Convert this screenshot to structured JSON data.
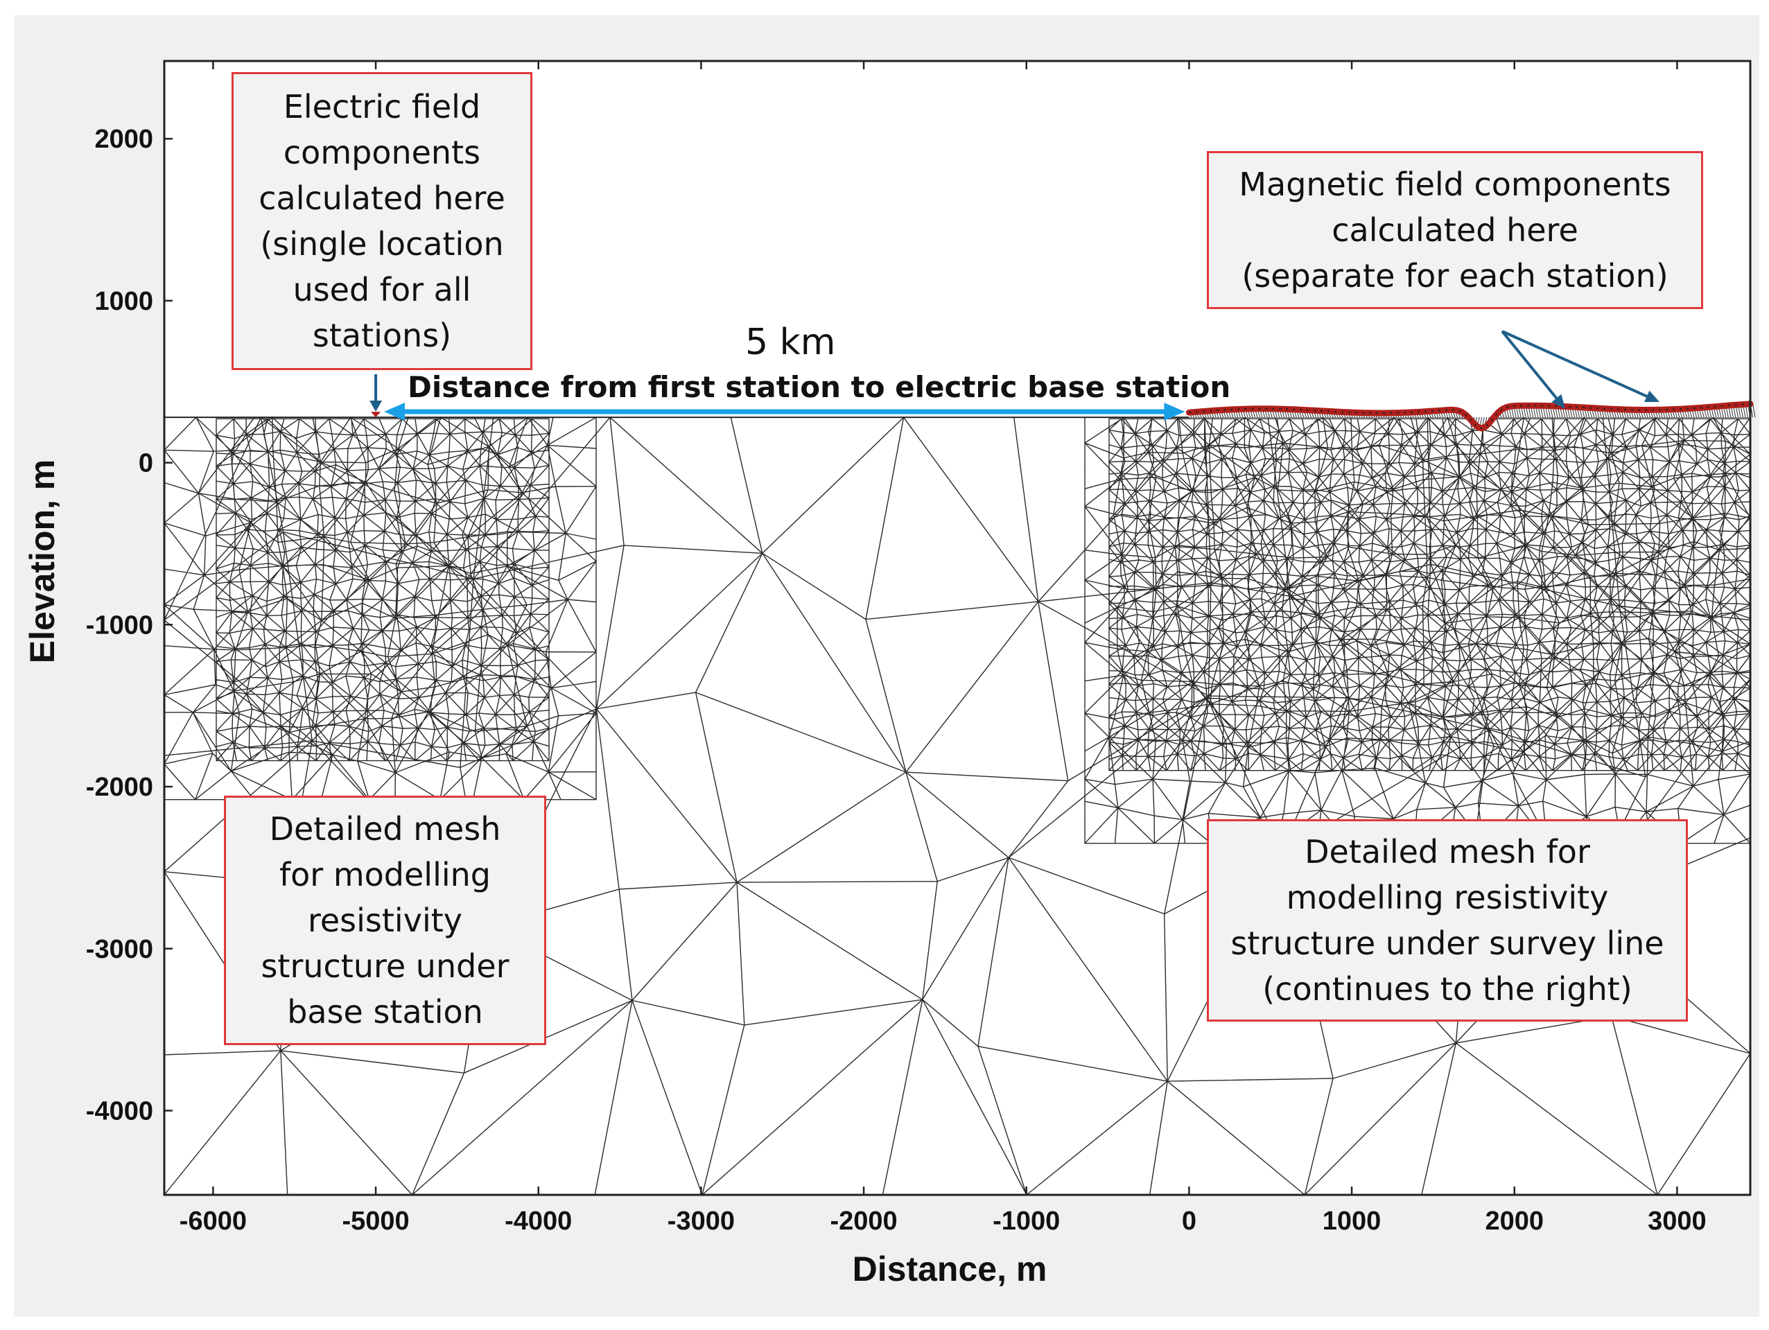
{
  "figure": {
    "x_axis_title": "Distance, m",
    "y_axis_title": "Elevation, m",
    "x_ticks": [
      -6000,
      -5000,
      -4000,
      -3000,
      -2000,
      -1000,
      0,
      1000,
      2000,
      3000
    ],
    "x_tick_labels": [
      "-6000",
      "-5000",
      "-4000",
      "-3000",
      "-2000",
      "-1000",
      "0",
      "1000",
      "2000",
      "3000"
    ],
    "y_ticks": [
      2000,
      1000,
      0,
      -1000,
      -2000,
      -3000,
      -4000
    ],
    "y_tick_labels": [
      "2000",
      "1000",
      "0",
      "-1000",
      "-2000",
      "-3000",
      "-4000"
    ],
    "x_range": [
      -6300,
      3450
    ],
    "y_range": [
      -4520,
      2480
    ],
    "colors": {
      "mesh_line": "#2b2b2b",
      "callout_border": "#e0393b",
      "callout_fill": "#f2f2f2",
      "distance_arrow": "#1aa0e6",
      "pointer_arrow": "#1f5f8b",
      "station_marker": "#b0201c",
      "outer_background": "#f0f0f0"
    }
  },
  "callouts": {
    "electric": "Electric field\ncomponents\ncalculated here\n(single location\nused for all\nstations)",
    "magnetic": "Magnetic field components\ncalculated here\n(separate for each station)",
    "mesh_base": "Detailed mesh\nfor modelling\nresistivity\nstructure under\nbase station",
    "mesh_survey": "Detailed mesh for\nmodelling resistivity\nstructure under survey line\n(continues to the right)"
  },
  "distance_annotation": {
    "value": "5 km",
    "caption": "Distance from first station to electric base station",
    "from_x": -5000,
    "to_x": 0
  },
  "stations": {
    "base_x": -5000,
    "first_x": 0,
    "last_x": 3450,
    "notch_x": 1800
  }
}
